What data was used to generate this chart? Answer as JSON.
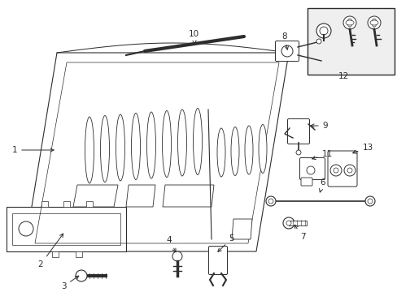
{
  "background_color": "#ffffff",
  "line_color": "#2d2d2d",
  "box_color": "#efefef",
  "label_data": {
    "1": [
      70,
      185,
      18,
      185
    ],
    "2": [
      80,
      285,
      50,
      326
    ],
    "3": [
      100,
      338,
      78,
      353
    ],
    "4": [
      218,
      314,
      208,
      296
    ],
    "5": [
      265,
      313,
      285,
      294
    ],
    "6": [
      393,
      238,
      397,
      225
    ],
    "7": [
      360,
      274,
      372,
      292
    ],
    "8": [
      354,
      65,
      350,
      45
    ],
    "9": [
      378,
      155,
      400,
      155
    ],
    "10": [
      240,
      58,
      238,
      42
    ],
    "11": [
      380,
      197,
      402,
      190
    ],
    "12": [
      422,
      94,
      422,
      94
    ],
    "13": [
      430,
      190,
      452,
      182
    ]
  }
}
